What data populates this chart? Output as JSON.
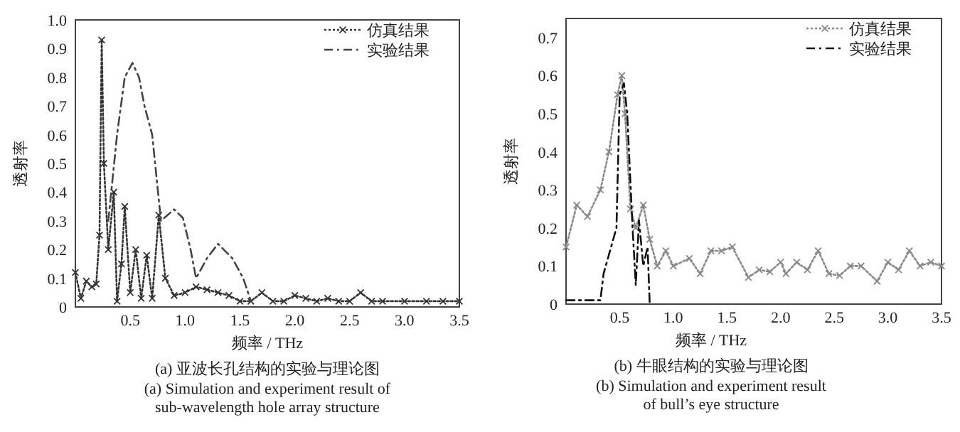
{
  "chart_data": [
    {
      "type": "line",
      "title": "(a)  亚波长孔结构的实验与理论图",
      "subtitle": "(a)  Simulation and experiment result of sub-wavelength hole array structure",
      "xlabel": "频率 / THz",
      "ylabel": "透射率",
      "xlim": [
        0,
        3.5
      ],
      "ylim": [
        0,
        1.0
      ],
      "xticks": [
        0.5,
        {
          "value": 1,
          "label": "1.0"
        },
        1.5,
        {
          "value": 2,
          "label": "2.0"
        },
        2.5,
        {
          "value": 3,
          "label": "3.0"
        },
        3.5
      ],
      "yticks": [
        0,
        0.1,
        0.2,
        0.3,
        0.4,
        0.5,
        0.6,
        0.7,
        0.8,
        0.9,
        {
          "value": 1,
          "label": "1.0"
        }
      ],
      "grid": false,
      "legend": "top right",
      "series": [
        {
          "name": "仿真结果",
          "color": "#333333",
          "marker": "cross",
          "line_style": "dotted",
          "x": [
            0,
            0.05,
            0.1,
            0.15,
            0.19,
            0.22,
            0.24,
            0.26,
            0.3,
            0.35,
            0.38,
            0.42,
            0.45,
            0.5,
            0.55,
            0.6,
            0.65,
            0.7,
            0.76,
            0.82,
            0.9,
            1.0,
            1.1,
            1.2,
            1.3,
            1.4,
            1.5,
            1.6,
            1.7,
            1.8,
            1.9,
            2.0,
            2.1,
            2.2,
            2.3,
            2.4,
            2.5,
            2.6,
            2.7,
            2.8,
            3.0,
            3.2,
            3.35,
            3.5
          ],
          "values": [
            0.12,
            0.03,
            0.09,
            0.07,
            0.08,
            0.25,
            0.93,
            0.5,
            0.2,
            0.4,
            0.02,
            0.15,
            0.35,
            0.05,
            0.2,
            0.03,
            0.18,
            0.03,
            0.32,
            0.1,
            0.04,
            0.05,
            0.07,
            0.06,
            0.05,
            0.04,
            0.02,
            0.02,
            0.05,
            0.02,
            0.02,
            0.04,
            0.03,
            0.02,
            0.03,
            0.02,
            0.02,
            0.05,
            0.02,
            0.02,
            0.02,
            0.02,
            0.02,
            0.02
          ]
        },
        {
          "name": "实验结果",
          "color": "#444444",
          "marker": "none",
          "line_style": "dashed",
          "x": [
            0.3,
            0.38,
            0.45,
            0.52,
            0.58,
            0.63,
            0.7,
            0.78,
            0.84,
            0.9,
            0.98,
            1.05,
            1.1,
            1.2,
            1.3,
            1.43,
            1.53,
            1.6
          ],
          "values": [
            0.3,
            0.6,
            0.8,
            0.85,
            0.8,
            0.7,
            0.6,
            0.3,
            0.32,
            0.34,
            0.31,
            0.2,
            0.1,
            0.17,
            0.22,
            0.17,
            0.1,
            0.02
          ]
        }
      ]
    },
    {
      "type": "line",
      "title": "(b)  牛眼结构的实验与理论图",
      "subtitle": "(b)  Simulation and experiment result of bull’s eye structure",
      "xlabel": "频率 / THz",
      "ylabel": "透射率",
      "xlim": [
        0,
        3.5
      ],
      "ylim": [
        0,
        0.75
      ],
      "xticks": [
        0.5,
        {
          "value": 1,
          "label": "1.0"
        },
        1.5,
        {
          "value": 2,
          "label": "2.0"
        },
        2.5,
        {
          "value": 3,
          "label": "3.0"
        },
        3.5
      ],
      "yticks": [
        0,
        0.1,
        0.2,
        0.3,
        0.4,
        0.5,
        0.6,
        0.7
      ],
      "grid": false,
      "legend": "top right",
      "series": [
        {
          "name": "仿真结果",
          "color": "#888888",
          "marker": "cross",
          "line_style": "dotted",
          "x": [
            0,
            0.1,
            0.2,
            0.32,
            0.4,
            0.48,
            0.52,
            0.55,
            0.6,
            0.65,
            0.72,
            0.78,
            0.85,
            0.93,
            1.0,
            1.15,
            1.25,
            1.35,
            1.45,
            1.55,
            1.7,
            1.8,
            1.9,
            2.0,
            2.05,
            2.15,
            2.25,
            2.35,
            2.45,
            2.55,
            2.65,
            2.75,
            2.9,
            3.0,
            3.1,
            3.2,
            3.3,
            3.4,
            3.5
          ],
          "values": [
            0.15,
            0.26,
            0.23,
            0.3,
            0.4,
            0.55,
            0.6,
            0.5,
            0.25,
            0.2,
            0.26,
            0.17,
            0.1,
            0.14,
            0.1,
            0.12,
            0.08,
            0.14,
            0.14,
            0.15,
            0.07,
            0.09,
            0.085,
            0.11,
            0.08,
            0.11,
            0.09,
            0.14,
            0.08,
            0.075,
            0.1,
            0.1,
            0.06,
            0.11,
            0.09,
            0.14,
            0.1,
            0.11,
            0.1
          ]
        },
        {
          "name": "实验结果",
          "color": "#111111",
          "marker": "none",
          "line_style": "dashed",
          "x": [
            0,
            0.32,
            0.35,
            0.42,
            0.47,
            0.5,
            0.54,
            0.57,
            0.62,
            0.65,
            0.68,
            0.72,
            0.76,
            0.78
          ],
          "values": [
            0.01,
            0.01,
            0.08,
            0.15,
            0.2,
            0.55,
            0.58,
            0.5,
            0.2,
            0.05,
            0.22,
            0.1,
            0.15,
            0.0
          ]
        }
      ]
    }
  ]
}
